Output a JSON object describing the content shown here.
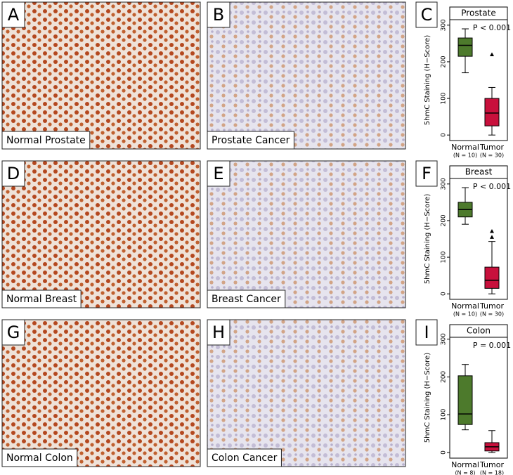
{
  "panels": [
    {
      "letter": "A",
      "caption": "Normal Prostate"
    },
    {
      "letter": "B",
      "caption": "Prostate Cancer"
    },
    {
      "letter": "D",
      "caption": "Normal Breast"
    },
    {
      "letter": "E",
      "caption": "Breast Cancer"
    },
    {
      "letter": "G",
      "caption": "Normal Colon"
    },
    {
      "letter": "H",
      "caption": "Colon Cancer"
    }
  ],
  "chart_data": [
    {
      "type": "box",
      "letter": "C",
      "title": "Prostate",
      "annotation": "P < 0.001",
      "y_label": "5hmC Staining (H−Score)",
      "categories": [
        "Normal",
        "Tumor"
      ],
      "sample_sizes": [
        "(N = 10)",
        "(N = 30)"
      ],
      "colors": [
        "#4d7a2c",
        "#c8103c"
      ],
      "boxes": [
        {
          "min": 170,
          "q1": 215,
          "median": 245,
          "q3": 265,
          "max": 290,
          "outliers": []
        },
        {
          "min": 0,
          "q1": 25,
          "median": 60,
          "q3": 100,
          "max": 130,
          "outliers": [
            220
          ]
        }
      ],
      "ylim": [
        -15,
        315
      ],
      "yticks": [
        0,
        100,
        200,
        300
      ]
    },
    {
      "type": "box",
      "letter": "F",
      "title": "Breast",
      "annotation": "P < 0.001",
      "y_label": "5hmC Staining (H−Score)",
      "categories": [
        "Normal",
        "Tumor"
      ],
      "sample_sizes": [
        "(N = 10)",
        "(N = 30)"
      ],
      "colors": [
        "#4d7a2c",
        "#c8103c"
      ],
      "boxes": [
        {
          "min": 190,
          "q1": 210,
          "median": 230,
          "q3": 250,
          "max": 290,
          "outliers": []
        },
        {
          "min": 0,
          "q1": 15,
          "median": 37,
          "q3": 73,
          "max": 143,
          "outliers": [
            155,
            171
          ]
        }
      ],
      "ylim": [
        -15,
        315
      ],
      "yticks": [
        0,
        100,
        200,
        300
      ]
    },
    {
      "type": "box",
      "letter": "I",
      "title": "Colon",
      "annotation": "P = 0.001",
      "y_label": "5hmC Staining (H−Score)",
      "categories": [
        "Normal",
        "Tumor"
      ],
      "sample_sizes": [
        "(N = 8)",
        "(N = 18)"
      ],
      "colors": [
        "#4d7a2c",
        "#c8103c"
      ],
      "boxes": [
        {
          "min": 60,
          "q1": 74,
          "median": 102,
          "q3": 203,
          "max": 233,
          "outliers": []
        },
        {
          "min": 0,
          "q1": 4,
          "median": 15,
          "q3": 26,
          "max": 58,
          "outliers": []
        }
      ],
      "ylim": [
        -15,
        305
      ],
      "yticks": [
        0,
        100,
        200,
        300
      ]
    }
  ]
}
